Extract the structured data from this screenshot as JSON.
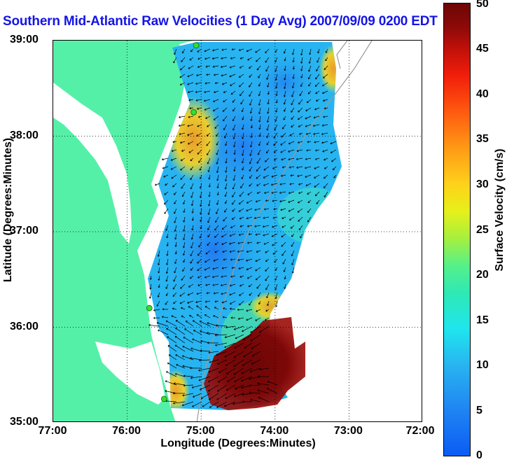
{
  "title": "Southern Mid-Atlantic Raw Velocities (1 Day Avg) 2007/09/09 0200 EDT",
  "map": {
    "x_axis_label": "Longitude (Degrees:Minutes)",
    "y_axis_label": "Latitude (Degrees:Minutes)",
    "x_ticks": [
      "77:00",
      "76:00",
      "75:00",
      "74:00",
      "73:00",
      "72:00"
    ],
    "y_ticks": [
      "39:00",
      "38:00",
      "37:00",
      "36:00",
      "35:00"
    ],
    "lon_range": [
      -77.0,
      -72.0
    ],
    "lat_range": [
      35.0,
      39.0
    ],
    "grid": "dotted",
    "land_color": "#55f0a8",
    "stations": [
      {
        "lon": -75.0667,
        "lat": 38.95
      },
      {
        "lon": -75.1,
        "lat": 38.25
      },
      {
        "lon": -75.7,
        "lat": 36.2
      },
      {
        "lon": -75.5,
        "lat": 35.25
      }
    ]
  },
  "colorbar": {
    "label": "Surface Velocity (cm/s)",
    "min": 0,
    "max": 50,
    "ticks": [
      "0",
      "5",
      "10",
      "15",
      "20",
      "25",
      "30",
      "35",
      "40",
      "45",
      "50"
    ]
  }
}
